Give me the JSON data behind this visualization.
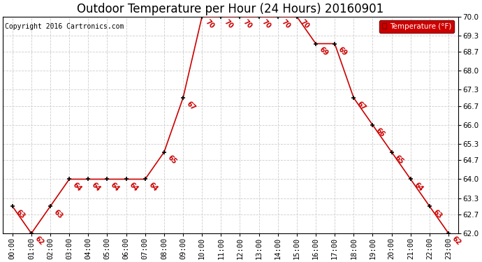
{
  "title": "Outdoor Temperature per Hour (24 Hours) 20160901",
  "copyright": "Copyright 2016 Cartronics.com",
  "legend_label": "Temperature (°F)",
  "hours": [
    0,
    1,
    2,
    3,
    4,
    5,
    6,
    7,
    8,
    9,
    10,
    11,
    12,
    13,
    14,
    15,
    16,
    17,
    18,
    19,
    20,
    21,
    22,
    23
  ],
  "hour_labels": [
    "00:00",
    "01:00",
    "02:00",
    "03:00",
    "04:00",
    "05:00",
    "06:00",
    "07:00",
    "08:00",
    "09:00",
    "10:00",
    "11:00",
    "12:00",
    "13:00",
    "14:00",
    "15:00",
    "16:00",
    "17:00",
    "18:00",
    "19:00",
    "20:00",
    "21:00",
    "22:00",
    "23:00"
  ],
  "temperatures": [
    63,
    62,
    63,
    64,
    64,
    64,
    64,
    64,
    65,
    67,
    70,
    70,
    70,
    70,
    70,
    70,
    69,
    69,
    67,
    66,
    65,
    64,
    63,
    62
  ],
  "ylim": [
    62.0,
    70.0
  ],
  "ytick_vals": [
    62.0,
    62.7,
    63.3,
    64.0,
    64.7,
    65.3,
    66.0,
    66.7,
    67.3,
    68.0,
    68.7,
    69.3,
    70.0
  ],
  "ytick_labels": [
    "62.0",
    "62.7",
    "63.3",
    "64.0",
    "64.7",
    "65.3",
    "66.0",
    "66.7",
    "67.3",
    "68.0",
    "68.7",
    "69.3",
    "70.0"
  ],
  "line_color": "#cc0000",
  "marker_color": "#000000",
  "label_color": "#cc0000",
  "bg_color": "#ffffff",
  "grid_color": "#cccccc",
  "title_fontsize": 12,
  "axis_fontsize": 7.5,
  "label_fontsize": 7,
  "copyright_fontsize": 7,
  "legend_bg": "#cc0000",
  "legend_fg": "#ffffff",
  "fig_width": 6.9,
  "fig_height": 3.75,
  "dpi": 100
}
